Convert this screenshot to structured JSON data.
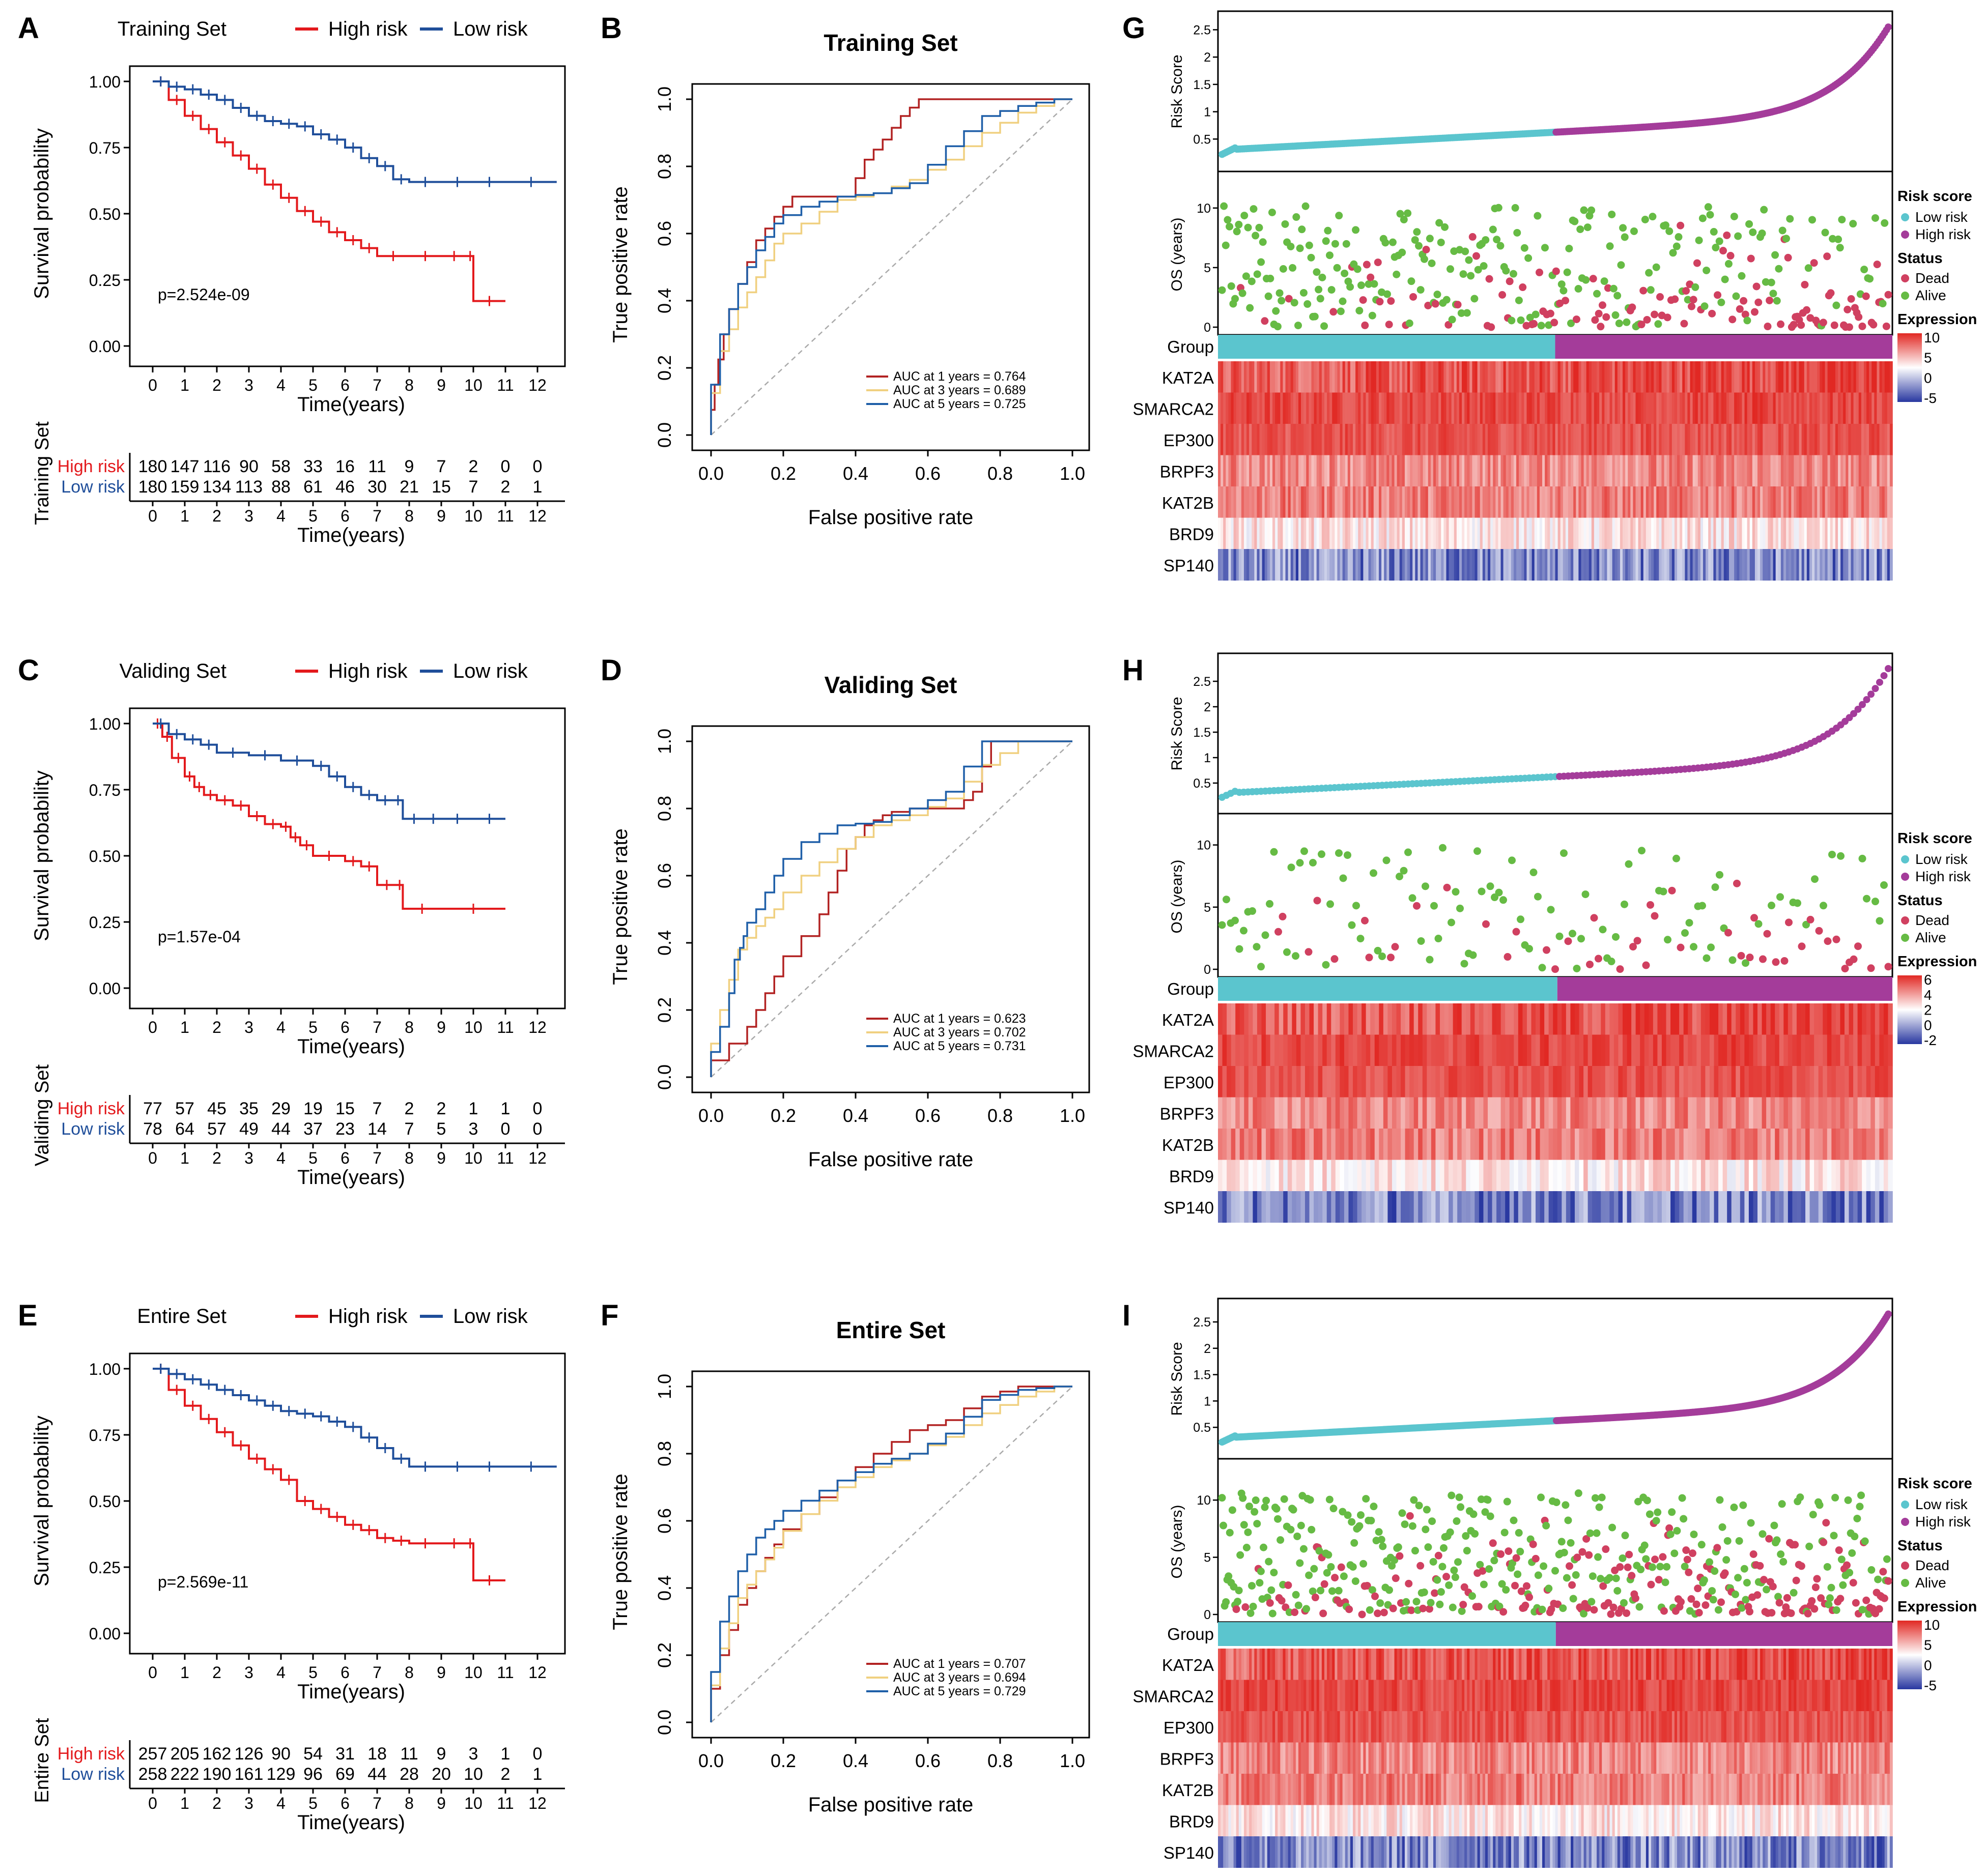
{
  "colors": {
    "high": "#E3191C",
    "low": "#1F4E9A",
    "roc1": "#B22222",
    "roc3": "#F0D080",
    "roc5": "#1F5FA8",
    "lowCyan": "#5BC5CE",
    "highPurple": "#A43C9A",
    "dead": "#D04060",
    "alive": "#66BB44"
  },
  "time_ticks": [
    "0",
    "1",
    "2",
    "3",
    "4",
    "5",
    "6",
    "7",
    "8",
    "9",
    "10",
    "11",
    "12"
  ],
  "roc_ticks": [
    "0.0",
    "0.2",
    "0.4",
    "0.6",
    "0.8",
    "1.0"
  ],
  "km_ticks": [
    "1.00",
    "0.75",
    "0.50",
    "0.25",
    "0.00"
  ],
  "common": {
    "km_ylabel": "Survival probability",
    "time_label": "Time(years)",
    "high_label": "High risk",
    "low_label": "Low risk",
    "roc_ylabel": "True positive rate",
    "roc_xlabel": "False positive rate",
    "risk_ylabel": "Risk Score",
    "os_ylabel": "OS (years)",
    "group_label": "Group",
    "legend_risk": "Risk score",
    "legend_status": "Status",
    "legend_dead": "Dead",
    "legend_alive": "Alive",
    "legend_expr": "Expression",
    "genes": [
      "KAT2A",
      "SMARCA2",
      "EP300",
      "BRPF3",
      "KAT2B",
      "BRD9",
      "SP140"
    ]
  },
  "chart_data": [
    {
      "type": "line",
      "panel": "A",
      "set": "Training Set",
      "pvalue": "p=2.524e-09",
      "ylabel": "Survival probability",
      "xlabel": "Time(years)",
      "xlim": [
        0,
        12
      ],
      "ylim": [
        0,
        1
      ],
      "series": [
        {
          "name": "High risk",
          "x": [
            0,
            0.5,
            1,
            1.5,
            2,
            2.5,
            3,
            3.5,
            4,
            4.5,
            5,
            5.5,
            6,
            6.5,
            7,
            8,
            9,
            9.8,
            10,
            11
          ],
          "y": [
            1,
            0.93,
            0.87,
            0.82,
            0.77,
            0.72,
            0.67,
            0.61,
            0.56,
            0.51,
            0.47,
            0.43,
            0.4,
            0.37,
            0.34,
            0.34,
            0.34,
            0.34,
            0.17,
            0.17
          ]
        },
        {
          "name": "Low risk",
          "x": [
            0,
            0.5,
            1,
            1.5,
            2,
            2.5,
            3,
            3.5,
            4,
            4.5,
            5,
            5.5,
            6,
            6.5,
            7,
            7.5,
            8,
            9,
            10,
            11,
            12.6
          ],
          "y": [
            1,
            0.98,
            0.97,
            0.95,
            0.93,
            0.9,
            0.87,
            0.85,
            0.84,
            0.83,
            0.8,
            0.78,
            0.75,
            0.71,
            0.68,
            0.63,
            0.62,
            0.62,
            0.62,
            0.62,
            0.62
          ]
        }
      ],
      "risk_table": {
        "title": "Training Set",
        "high": [
          "180",
          "147",
          "116",
          "90",
          "58",
          "33",
          "16",
          "11",
          "9",
          "7",
          "2",
          "0",
          "0"
        ],
        "low": [
          "180",
          "159",
          "134",
          "113",
          "88",
          "61",
          "46",
          "30",
          "21",
          "15",
          "7",
          "2",
          "1"
        ]
      }
    },
    {
      "type": "line",
      "panel": "C",
      "set": "Validing Set",
      "pvalue": "p=1.57e-04",
      "ylabel": "Survival probability",
      "xlabel": "Time(years)",
      "xlim": [
        0,
        12
      ],
      "ylim": [
        0,
        1
      ],
      "series": [
        {
          "name": "High risk",
          "x": [
            0,
            0.3,
            0.6,
            1,
            1.3,
            1.6,
            2,
            2.5,
            3,
            3.5,
            4,
            4.3,
            4.6,
            5,
            6,
            6.5,
            7,
            7.6,
            7.8,
            9,
            11
          ],
          "y": [
            1,
            0.95,
            0.87,
            0.8,
            0.76,
            0.73,
            0.71,
            0.69,
            0.65,
            0.62,
            0.61,
            0.57,
            0.54,
            0.5,
            0.48,
            0.46,
            0.39,
            0.39,
            0.3,
            0.3,
            0.3
          ]
        },
        {
          "name": "Low risk",
          "x": [
            0,
            0.5,
            1,
            1.5,
            2,
            3,
            4,
            5,
            5.5,
            6,
            6.5,
            7,
            7.5,
            7.8,
            8.5,
            9,
            10,
            11
          ],
          "y": [
            1,
            0.96,
            0.94,
            0.92,
            0.89,
            0.88,
            0.86,
            0.84,
            0.8,
            0.76,
            0.73,
            0.71,
            0.71,
            0.64,
            0.64,
            0.64,
            0.64,
            0.64
          ]
        }
      ],
      "risk_table": {
        "title": "Validing Set",
        "high": [
          "77",
          "57",
          "45",
          "35",
          "29",
          "19",
          "15",
          "7",
          "2",
          "2",
          "1",
          "1",
          "0"
        ],
        "low": [
          "78",
          "64",
          "57",
          "49",
          "44",
          "37",
          "23",
          "14",
          "7",
          "5",
          "3",
          "0",
          "0"
        ]
      }
    },
    {
      "type": "line",
      "panel": "E",
      "set": "Entire Set",
      "pvalue": "p=2.569e-11",
      "ylabel": "Survival probability",
      "xlabel": "Time(years)",
      "xlim": [
        0,
        12
      ],
      "ylim": [
        0,
        1
      ],
      "series": [
        {
          "name": "High risk",
          "x": [
            0,
            0.5,
            1,
            1.5,
            2,
            2.5,
            3,
            3.5,
            4,
            4.5,
            5,
            5.5,
            6,
            6.5,
            7,
            7.5,
            8,
            9,
            9.8,
            10,
            11
          ],
          "y": [
            1,
            0.92,
            0.86,
            0.81,
            0.76,
            0.71,
            0.66,
            0.62,
            0.58,
            0.5,
            0.47,
            0.44,
            0.41,
            0.39,
            0.36,
            0.35,
            0.34,
            0.34,
            0.34,
            0.2,
            0.2
          ]
        },
        {
          "name": "Low risk",
          "x": [
            0,
            0.5,
            1,
            1.5,
            2,
            2.5,
            3,
            3.5,
            4,
            4.5,
            5,
            5.5,
            6,
            6.5,
            7,
            7.5,
            8,
            9,
            10,
            11,
            12.6
          ],
          "y": [
            1,
            0.98,
            0.96,
            0.94,
            0.92,
            0.9,
            0.88,
            0.86,
            0.84,
            0.83,
            0.82,
            0.8,
            0.78,
            0.74,
            0.7,
            0.66,
            0.63,
            0.63,
            0.63,
            0.63,
            0.63
          ]
        }
      ],
      "risk_table": {
        "title": "Entire Set",
        "high": [
          "257",
          "205",
          "162",
          "126",
          "90",
          "54",
          "31",
          "18",
          "11",
          "9",
          "3",
          "1",
          "0"
        ],
        "low": [
          "258",
          "222",
          "190",
          "161",
          "129",
          "96",
          "69",
          "44",
          "28",
          "20",
          "10",
          "2",
          "1"
        ]
      }
    },
    {
      "type": "line",
      "panel": "B",
      "title": "Training Set",
      "xlabel": "False positive rate",
      "ylabel": "True positive rate",
      "xlim": [
        0,
        1
      ],
      "ylim": [
        0,
        1
      ],
      "series": [
        {
          "name": "AUC at 1 years = 0.764",
          "x": [
            0,
            0.02,
            0.05,
            0.1,
            0.15,
            0.2,
            0.25,
            0.3,
            0.4,
            0.45,
            0.5,
            0.55,
            0.6,
            0.7,
            0.8,
            1
          ],
          "y": [
            0,
            0.15,
            0.3,
            0.45,
            0.58,
            0.65,
            0.71,
            0.71,
            0.71,
            0.82,
            0.88,
            0.95,
            1,
            1,
            1,
            1
          ]
        },
        {
          "name": "AUC at 3 years = 0.689",
          "x": [
            0,
            0.05,
            0.1,
            0.15,
            0.2,
            0.3,
            0.4,
            0.5,
            0.6,
            0.7,
            0.8,
            0.9,
            1
          ],
          "y": [
            0,
            0.25,
            0.38,
            0.47,
            0.57,
            0.63,
            0.7,
            0.72,
            0.76,
            0.82,
            0.9,
            0.96,
            1
          ]
        },
        {
          "name": "AUC at 5 years = 0.725",
          "x": [
            0,
            0.05,
            0.1,
            0.15,
            0.2,
            0.3,
            0.4,
            0.5,
            0.6,
            0.7,
            0.8,
            0.9,
            1
          ],
          "y": [
            0,
            0.3,
            0.45,
            0.55,
            0.63,
            0.68,
            0.71,
            0.72,
            0.75,
            0.86,
            0.95,
            0.98,
            1
          ]
        }
      ]
    },
    {
      "type": "line",
      "panel": "D",
      "title": "Validing Set",
      "xlabel": "False positive rate",
      "ylabel": "True positive rate",
      "xlim": [
        0,
        1
      ],
      "ylim": [
        0,
        1
      ],
      "series": [
        {
          "name": "AUC at 1 years = 0.623",
          "x": [
            0,
            0.1,
            0.15,
            0.2,
            0.3,
            0.35,
            0.4,
            0.45,
            0.5,
            0.6,
            0.7,
            0.75,
            0.8,
            0.9,
            1
          ],
          "y": [
            0,
            0.1,
            0.2,
            0.3,
            0.42,
            0.55,
            0.68,
            0.75,
            0.78,
            0.8,
            0.8,
            0.85,
            1,
            1,
            1
          ]
        },
        {
          "name": "AUC at 3 years = 0.702",
          "x": [
            0,
            0.05,
            0.1,
            0.15,
            0.2,
            0.3,
            0.4,
            0.5,
            0.6,
            0.7,
            0.8,
            0.9,
            1
          ],
          "y": [
            0,
            0.2,
            0.38,
            0.45,
            0.5,
            0.6,
            0.68,
            0.75,
            0.78,
            0.83,
            0.93,
            1,
            1
          ]
        },
        {
          "name": "AUC at 5 years = 0.731",
          "x": [
            0,
            0.05,
            0.08,
            0.1,
            0.15,
            0.2,
            0.3,
            0.4,
            0.5,
            0.6,
            0.7,
            0.8,
            0.9,
            1
          ],
          "y": [
            0,
            0.15,
            0.35,
            0.42,
            0.5,
            0.6,
            0.7,
            0.75,
            0.76,
            0.8,
            0.85,
            1,
            1,
            1
          ]
        }
      ]
    },
    {
      "type": "line",
      "panel": "F",
      "title": "Entire Set",
      "xlabel": "False positive rate",
      "ylabel": "True positive rate",
      "xlim": [
        0,
        1
      ],
      "ylim": [
        0,
        1
      ],
      "series": [
        {
          "name": "AUC at 1 years = 0.707",
          "x": [
            0,
            0.05,
            0.1,
            0.15,
            0.2,
            0.3,
            0.4,
            0.5,
            0.6,
            0.7,
            0.8,
            0.9,
            1
          ],
          "y": [
            0,
            0.2,
            0.35,
            0.45,
            0.53,
            0.62,
            0.72,
            0.8,
            0.87,
            0.9,
            0.97,
            1,
            1
          ]
        },
        {
          "name": "AUC at 3 years = 0.694",
          "x": [
            0,
            0.05,
            0.1,
            0.15,
            0.2,
            0.3,
            0.4,
            0.5,
            0.6,
            0.7,
            0.8,
            0.9,
            1
          ],
          "y": [
            0,
            0.22,
            0.37,
            0.45,
            0.52,
            0.62,
            0.7,
            0.76,
            0.8,
            0.85,
            0.92,
            0.97,
            1
          ]
        },
        {
          "name": "AUC at 5 years = 0.729",
          "x": [
            0,
            0.05,
            0.1,
            0.15,
            0.2,
            0.3,
            0.4,
            0.5,
            0.6,
            0.7,
            0.8,
            0.9,
            1
          ],
          "y": [
            0,
            0.3,
            0.45,
            0.55,
            0.6,
            0.66,
            0.72,
            0.77,
            0.8,
            0.86,
            0.96,
            0.99,
            1
          ]
        }
      ]
    },
    {
      "type": "heatmap",
      "panel": "G",
      "risk_ticks": [
        "0.5",
        "1",
        "1.5",
        "2",
        "2.5"
      ],
      "os_ticks": [
        "0",
        "5",
        "10"
      ],
      "expr_ticks": [
        "10",
        "5",
        "0",
        "-5"
      ],
      "risk_max": 2.7,
      "os_max": 12,
      "low_count": 180,
      "high_count": 180
    },
    {
      "type": "heatmap",
      "panel": "H",
      "risk_ticks": [
        "0.5",
        "1",
        "1.5",
        "2",
        "2.5"
      ],
      "os_ticks": [
        "0",
        "5",
        "10"
      ],
      "expr_ticks": [
        "6",
        "4",
        "2",
        "0",
        "-2"
      ],
      "risk_max": 2.9,
      "os_max": 11.5,
      "low_count": 78,
      "high_count": 77
    },
    {
      "type": "heatmap",
      "panel": "I",
      "risk_ticks": [
        "0.5",
        "1",
        "1.5",
        "2",
        "2.5"
      ],
      "os_ticks": [
        "0",
        "5",
        "10"
      ],
      "expr_ticks": [
        "10",
        "5",
        "0",
        "-5"
      ],
      "risk_max": 2.8,
      "os_max": 12.5,
      "low_count": 258,
      "high_count": 257
    }
  ]
}
